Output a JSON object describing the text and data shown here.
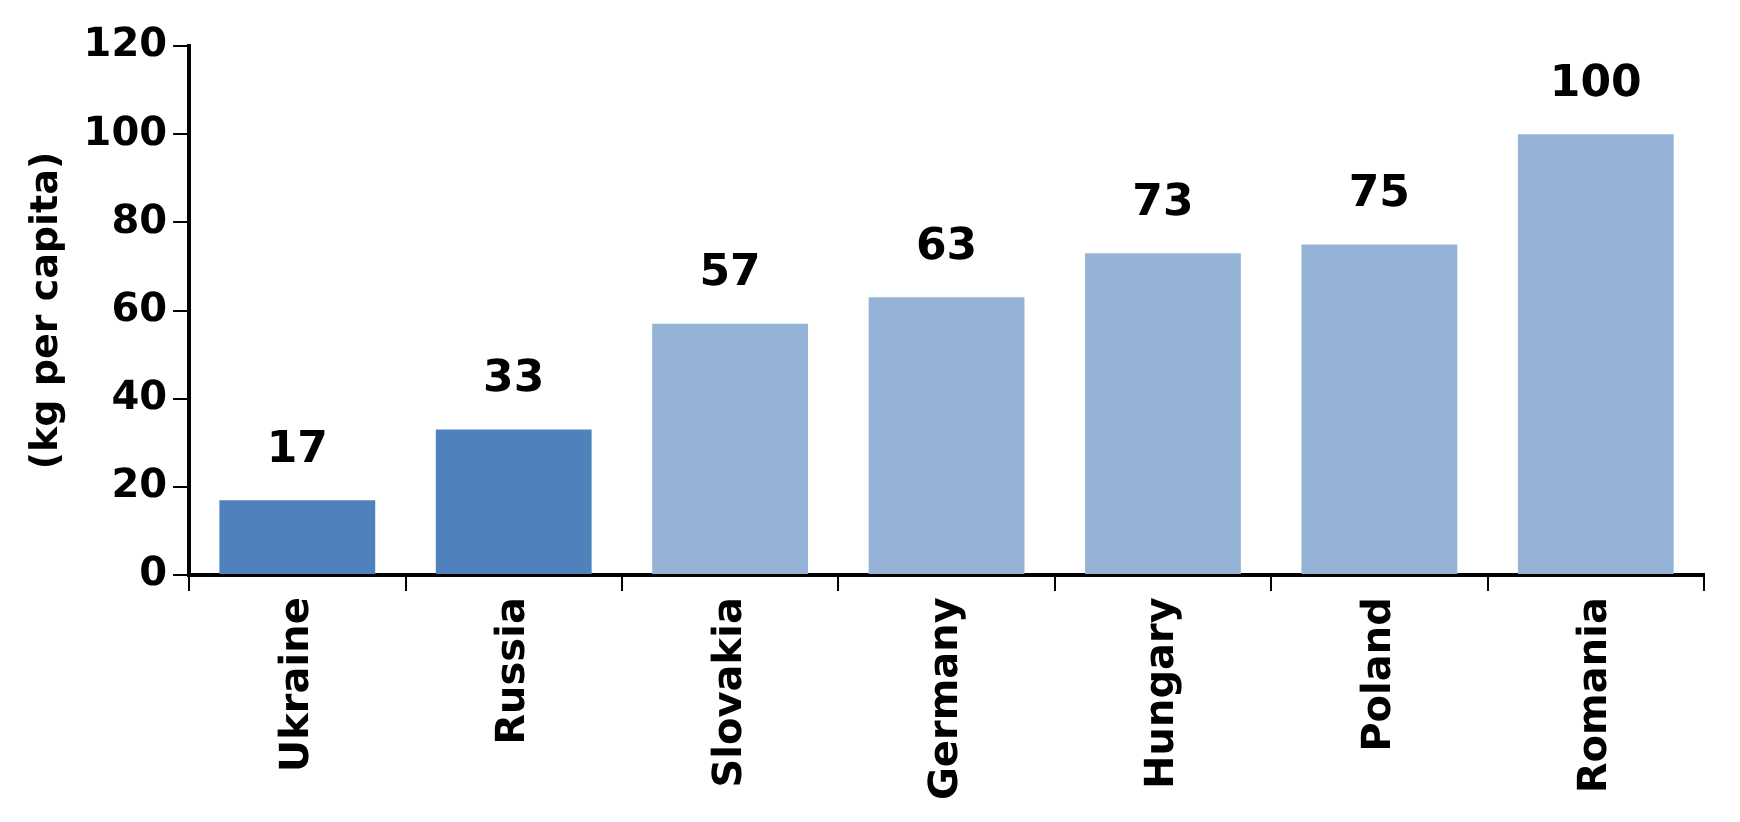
{
  "chart_data": {
    "type": "bar",
    "ylabel": "(kg per capita)",
    "categories": [
      "Ukraine",
      "Russia",
      "Slovakia",
      "Germany",
      "Hungary",
      "Poland",
      "Romania"
    ],
    "values": [
      17,
      33,
      57,
      63,
      73,
      75,
      100
    ],
    "colors": [
      "#4f81bd",
      "#4f81bd",
      "#95b3d7",
      "#95b3d7",
      "#95b3d7",
      "#95b3d7",
      "#95b3d7"
    ],
    "ylim": [
      0,
      120
    ],
    "yticks": [
      0,
      20,
      40,
      60,
      80,
      100,
      120
    ],
    "grid": false,
    "legend": false,
    "data_labels": true
  }
}
